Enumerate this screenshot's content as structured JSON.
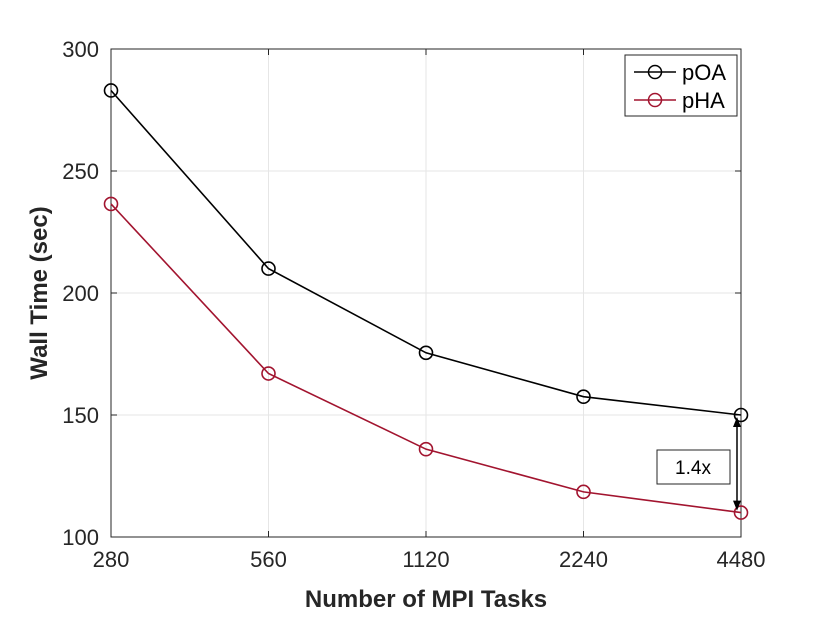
{
  "chart_data": {
    "type": "line",
    "title": "",
    "xlabel": "Number of MPI Tasks",
    "ylabel": "Wall Time (sec)",
    "categories": [
      "280",
      "560",
      "1120",
      "2240",
      "4480"
    ],
    "ylim": [
      100,
      300
    ],
    "yticks": [
      "100",
      "150",
      "200",
      "250",
      "300"
    ],
    "grid": true,
    "legend_position": "top-right",
    "series": [
      {
        "name": "pOA",
        "color": "#000000",
        "values": [
          283,
          210,
          175.5,
          157.5,
          150
        ]
      },
      {
        "name": "pHA",
        "color": "#a2142f",
        "values": [
          236.5,
          167,
          136,
          118.5,
          110
        ]
      }
    ],
    "annotation": {
      "text": "1.4x",
      "at_category": "4480",
      "from_series": "pOA",
      "to_series": "pHA"
    }
  }
}
